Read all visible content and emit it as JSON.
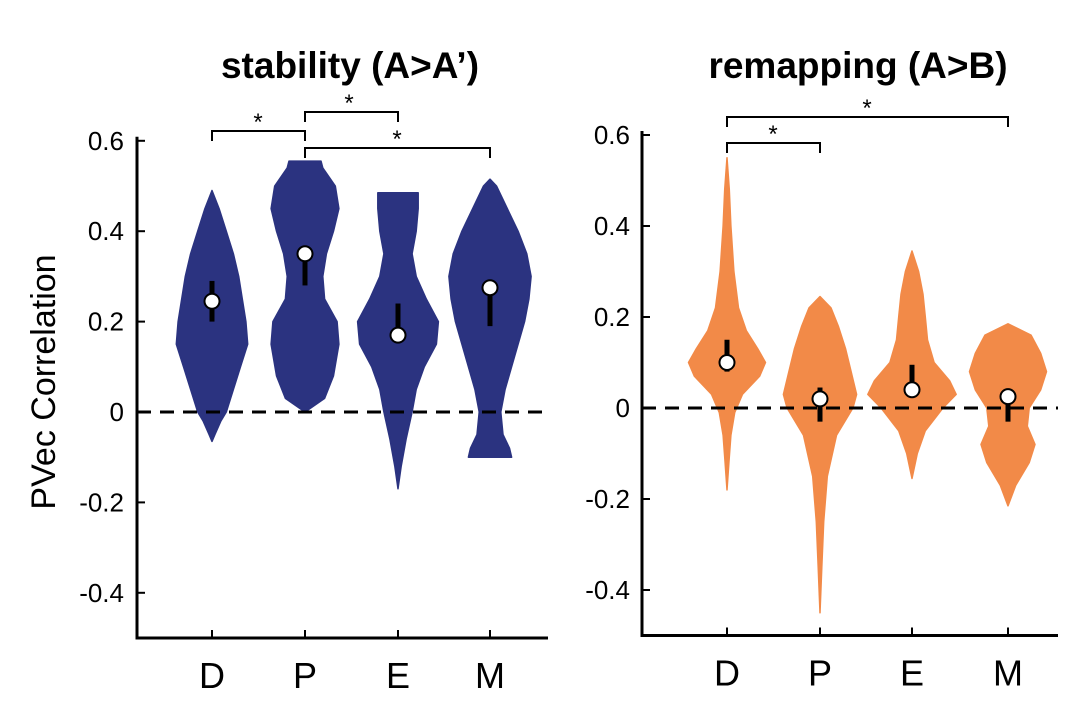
{
  "chart_data": [
    {
      "type": "violin",
      "title": "stability (A>A’)",
      "ylabel": "PVec Correlation",
      "ylim": [
        -0.5,
        0.6
      ],
      "yticks": [
        0.6,
        0.4,
        0.2,
        0,
        -0.2,
        -0.4
      ],
      "ytick_labels": [
        "0.6",
        "0.4",
        "0.2",
        "0",
        "-0.2",
        "-0.4"
      ],
      "categories": [
        "D",
        "P",
        "E",
        "M"
      ],
      "color": "#2b3380",
      "reference_line": 0,
      "series": [
        {
          "category": "D",
          "median": 0.245,
          "iqr": [
            0.2,
            0.29
          ],
          "min": -0.065,
          "max": 0.49
        },
        {
          "category": "P",
          "median": 0.35,
          "iqr": [
            0.28,
            0.36
          ],
          "min": 0.0,
          "max": 0.555
        },
        {
          "category": "E",
          "median": 0.17,
          "iqr": [
            0.17,
            0.24
          ],
          "min": -0.17,
          "max": 0.485
        },
        {
          "category": "M",
          "median": 0.275,
          "iqr": [
            0.19,
            0.28
          ],
          "min": -0.1,
          "max": 0.515
        }
      ],
      "significance": [
        {
          "from": "D",
          "to": "P",
          "label": "*"
        },
        {
          "from": "P",
          "to": "E",
          "label": "*"
        },
        {
          "from": "P",
          "to": "M",
          "label": "*"
        }
      ]
    },
    {
      "type": "violin",
      "title": "remapping (A>B)",
      "ylim": [
        -0.5,
        0.6
      ],
      "yticks": [
        0.6,
        0.4,
        0.2,
        0,
        -0.2,
        -0.4
      ],
      "ytick_labels": [
        "0.6",
        "0.4",
        "0.2",
        "0",
        "-0.2",
        "-0.4"
      ],
      "categories": [
        "D",
        "P",
        "E",
        "M"
      ],
      "color": "#f28a48",
      "reference_line": 0,
      "series": [
        {
          "category": "D",
          "median": 0.1,
          "iqr": [
            0.08,
            0.15
          ],
          "min": -0.18,
          "max": 0.55
        },
        {
          "category": "P",
          "median": 0.02,
          "iqr": [
            -0.03,
            0.045
          ],
          "min": -0.45,
          "max": 0.245
        },
        {
          "category": "E",
          "median": 0.04,
          "iqr": [
            0.04,
            0.095
          ],
          "min": -0.155,
          "max": 0.345
        },
        {
          "category": "M",
          "median": 0.025,
          "iqr": [
            -0.03,
            0.03
          ],
          "min": -0.215,
          "max": 0.185
        }
      ],
      "significance": [
        {
          "from": "D",
          "to": "P",
          "label": "*"
        },
        {
          "from": "D",
          "to": "M",
          "label": "*"
        }
      ]
    }
  ]
}
